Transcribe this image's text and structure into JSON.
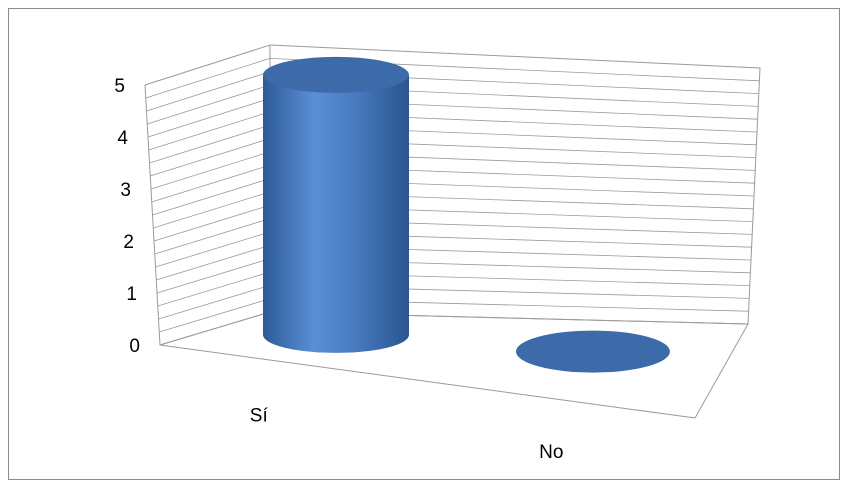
{
  "chart_data": {
    "type": "bar",
    "style": "3d-cylinder",
    "categories": [
      "Sí",
      "No"
    ],
    "values": [
      5,
      0
    ],
    "title": "",
    "xlabel": "",
    "ylabel": "",
    "ylim": [
      0,
      5
    ],
    "y_ticks": [
      "0",
      "1",
      "2",
      "3",
      "4",
      "5"
    ],
    "grid": true,
    "legend": "none",
    "colors": {
      "bar": "#4f81bd",
      "bar_dark": "#2e5b96",
      "bar_top": "#3d6aa8",
      "gridline": "#9a9a9a",
      "frame": "#8c8c8c"
    }
  }
}
